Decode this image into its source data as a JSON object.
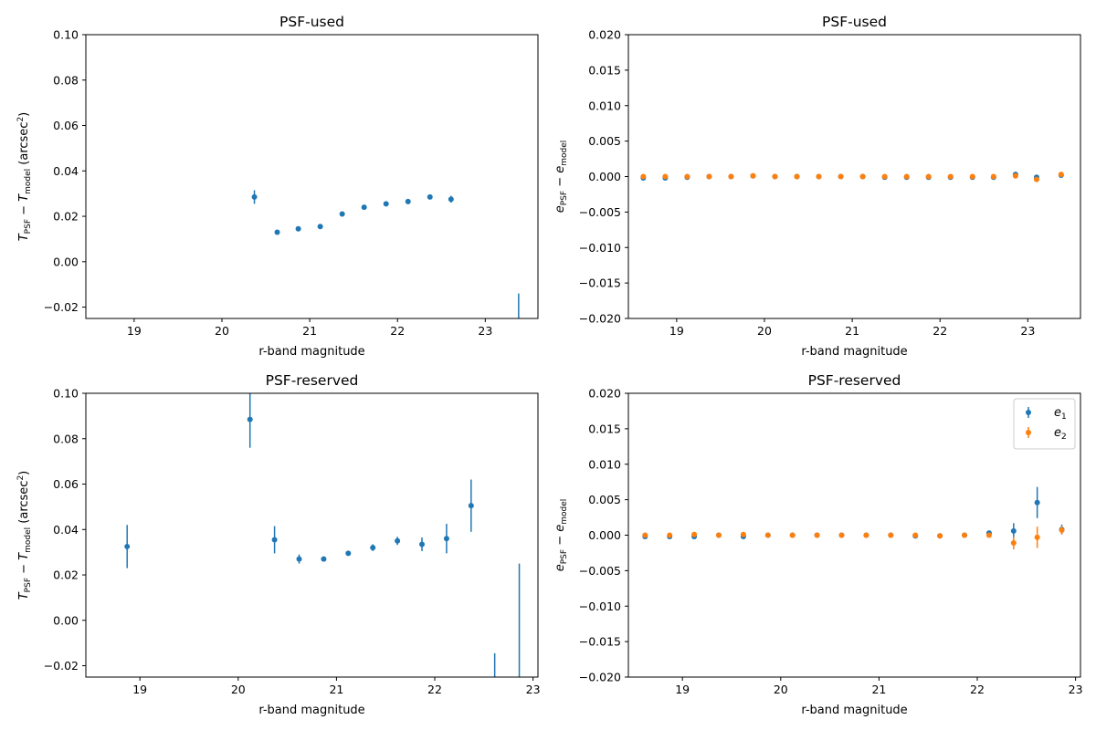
{
  "colors": {
    "e1": "#1f77b4",
    "e2": "#ff7f0e",
    "axis": "#000000"
  },
  "chart_data": [
    {
      "type": "scatter",
      "title": "PSF-used",
      "xlabel": "r-band magnitude",
      "ylabel_main": "T",
      "ylabel_sub1": "PSF",
      "ylabel_mid": " − T",
      "ylabel_sub2": "model",
      "ylabel_unit": " (arcsec",
      "ylabel_sup": "2",
      "ylabel_end": ")",
      "xlim": [
        18.45,
        23.6
      ],
      "ylim": [
        -0.025,
        0.1
      ],
      "xticks": [
        19,
        20,
        21,
        22,
        23
      ],
      "xtick_labels": [
        "19",
        "20",
        "21",
        "22",
        "23"
      ],
      "yticks": [
        -0.02,
        0.0,
        0.02,
        0.04,
        0.06,
        0.08,
        0.1
      ],
      "ytick_labels": [
        "−0.02",
        "0.00",
        "0.02",
        "0.04",
        "0.06",
        "0.08",
        "0.10"
      ],
      "series": [
        {
          "name": "T",
          "color_key": "e1",
          "x": [
            20.37,
            20.63,
            20.87,
            21.12,
            21.37,
            21.62,
            21.87,
            22.12,
            22.37,
            22.61,
            23.38
          ],
          "y": [
            0.0285,
            0.013,
            0.0145,
            0.0155,
            0.021,
            0.024,
            0.0255,
            0.0265,
            0.0285,
            0.0275,
            null
          ],
          "err": [
            0.003,
            0.0008,
            0.001,
            0.001,
            0.0006,
            0.0006,
            0.0007,
            0.0007,
            0.001,
            0.0015,
            null
          ],
          "err_low": [
            null,
            null,
            null,
            null,
            null,
            null,
            null,
            null,
            null,
            null,
            -0.03
          ],
          "err_high": [
            null,
            null,
            null,
            null,
            null,
            null,
            null,
            null,
            null,
            null,
            -0.014
          ]
        }
      ]
    },
    {
      "type": "scatter",
      "title": "PSF-used",
      "xlabel": "r-band magnitude",
      "ylabel_main": "e",
      "ylabel_sub1": "PSF",
      "ylabel_mid": " − e",
      "ylabel_sub2": "model",
      "ylabel_unit": "",
      "ylabel_sup": "",
      "ylabel_end": "",
      "xlim": [
        18.45,
        23.6
      ],
      "ylim": [
        -0.02,
        0.02
      ],
      "xticks": [
        19,
        20,
        21,
        22,
        23
      ],
      "xtick_labels": [
        "19",
        "20",
        "21",
        "22",
        "23"
      ],
      "yticks": [
        -0.02,
        -0.015,
        -0.01,
        -0.005,
        0.0,
        0.005,
        0.01,
        0.015,
        0.02
      ],
      "ytick_labels": [
        "−0.020",
        "−0.015",
        "−0.010",
        "−0.005",
        "0.000",
        "0.005",
        "0.010",
        "0.015",
        "0.020"
      ],
      "series": [
        {
          "name": "e1",
          "color_key": "e1",
          "x": [
            18.62,
            18.87,
            19.12,
            19.37,
            19.62,
            19.87,
            20.12,
            20.37,
            20.62,
            20.87,
            21.12,
            21.37,
            21.62,
            21.87,
            22.12,
            22.37,
            22.61,
            22.86,
            23.1,
            23.38
          ],
          "y": [
            -0.0002,
            -0.0002,
            -0.0001,
            0.0,
            0.0,
            0.0001,
            0.0,
            0.0,
            0.0,
            0.0,
            0.0,
            -0.0001,
            -0.0001,
            -0.0001,
            -0.0001,
            -0.0001,
            -0.0001,
            0.0003,
            -0.0001,
            0.0002
          ],
          "err": [
            0.0001,
            0.0001,
            0.0001,
            0.0001,
            0.0001,
            0.0001,
            0.0001,
            0.0001,
            0.0001,
            0.0001,
            0.0001,
            0.0001,
            0.0001,
            0.0001,
            0.0001,
            0.0001,
            0.0001,
            0.0002,
            0.0002,
            0.0003
          ]
        },
        {
          "name": "e2",
          "color_key": "e2",
          "x": [
            18.62,
            18.87,
            19.12,
            19.37,
            19.62,
            19.87,
            20.12,
            20.37,
            20.62,
            20.87,
            21.12,
            21.37,
            21.62,
            21.87,
            22.12,
            22.37,
            22.61,
            22.86,
            23.1,
            23.38
          ],
          "y": [
            0.0,
            0.0,
            0.0,
            0.0,
            0.0,
            0.0001,
            0.0,
            0.0,
            0.0,
            0.0,
            0.0,
            0.0,
            0.0,
            0.0,
            0.0,
            0.0,
            0.0,
            0.0001,
            -0.0004,
            0.0003
          ],
          "err": [
            0.0001,
            0.0001,
            0.0001,
            0.0001,
            0.0001,
            0.0001,
            0.0001,
            0.0001,
            0.0001,
            0.0001,
            0.0001,
            0.0001,
            0.0001,
            0.0001,
            0.0001,
            0.0001,
            0.0001,
            0.0002,
            0.0002,
            0.0003
          ]
        }
      ]
    },
    {
      "type": "scatter",
      "title": "PSF-reserved",
      "xlabel": "r-band magnitude",
      "ylabel_main": "T",
      "ylabel_sub1": "PSF",
      "ylabel_mid": " − T",
      "ylabel_sub2": "model",
      "ylabel_unit": " (arcsec",
      "ylabel_sup": "2",
      "ylabel_end": ")",
      "xlim": [
        18.45,
        23.05
      ],
      "ylim": [
        -0.025,
        0.1
      ],
      "xticks": [
        19,
        20,
        21,
        22,
        23
      ],
      "xtick_labels": [
        "19",
        "20",
        "21",
        "22",
        "23"
      ],
      "yticks": [
        -0.02,
        0.0,
        0.02,
        0.04,
        0.06,
        0.08,
        0.1
      ],
      "ytick_labels": [
        "−0.02",
        "0.00",
        "0.02",
        "0.04",
        "0.06",
        "0.08",
        "0.10"
      ],
      "series": [
        {
          "name": "T",
          "color_key": "e1",
          "x": [
            18.87,
            20.12,
            20.37,
            20.62,
            20.87,
            21.12,
            21.37,
            21.62,
            21.87,
            22.12,
            22.37,
            22.61,
            22.86
          ],
          "y": [
            0.0325,
            0.0885,
            0.0355,
            0.027,
            0.027,
            0.0295,
            0.032,
            0.035,
            0.0335,
            0.036,
            0.0505,
            null,
            null
          ],
          "err": [
            0.0095,
            0.0125,
            0.006,
            0.002,
            0.0008,
            0.0008,
            0.0015,
            0.0018,
            0.003,
            0.0065,
            0.0115,
            null,
            null
          ],
          "err_low": [
            null,
            null,
            null,
            null,
            null,
            null,
            null,
            null,
            null,
            null,
            null,
            -0.03,
            -0.03
          ],
          "err_high": [
            null,
            null,
            null,
            null,
            null,
            null,
            null,
            null,
            null,
            null,
            null,
            -0.0145,
            0.025
          ]
        }
      ]
    },
    {
      "type": "scatter",
      "title": "PSF-reserved",
      "xlabel": "r-band magnitude",
      "ylabel_main": "e",
      "ylabel_sub1": "PSF",
      "ylabel_mid": " − e",
      "ylabel_sub2": "model",
      "ylabel_unit": "",
      "ylabel_sup": "",
      "ylabel_end": "",
      "xlim": [
        18.45,
        23.05
      ],
      "ylim": [
        -0.02,
        0.02
      ],
      "xticks": [
        19,
        20,
        21,
        22,
        23
      ],
      "xtick_labels": [
        "19",
        "20",
        "21",
        "22",
        "23"
      ],
      "yticks": [
        -0.02,
        -0.015,
        -0.01,
        -0.005,
        0.0,
        0.005,
        0.01,
        0.015,
        0.02
      ],
      "ytick_labels": [
        "−0.020",
        "−0.015",
        "−0.010",
        "−0.005",
        "0.000",
        "0.005",
        "0.010",
        "0.015",
        "0.020"
      ],
      "legend": {
        "position": "top-right",
        "entries": [
          {
            "main": "e",
            "sub": "1",
            "color_key": "e1"
          },
          {
            "main": "e",
            "sub": "2",
            "color_key": "e2"
          }
        ]
      },
      "series": [
        {
          "name": "e1",
          "color_key": "e1",
          "x": [
            18.62,
            18.87,
            19.12,
            19.37,
            19.62,
            19.87,
            20.12,
            20.37,
            20.62,
            20.87,
            21.12,
            21.37,
            21.62,
            21.87,
            22.12,
            22.37,
            22.61,
            22.86
          ],
          "y": [
            -0.0002,
            -0.0002,
            -0.0002,
            0.0,
            -0.0002,
            0.0,
            0.0,
            0.0,
            0.0,
            0.0,
            0.0,
            -0.0001,
            -0.0001,
            0.0,
            0.0003,
            0.0006,
            0.0046,
            0.0008
          ],
          "err": [
            0.0001,
            0.0001,
            0.0001,
            0.0001,
            0.0001,
            0.0001,
            0.0001,
            0.0001,
            0.0001,
            0.0001,
            0.0001,
            0.0001,
            0.0001,
            0.0001,
            0.0002,
            0.0011,
            0.0022,
            0.0007
          ]
        },
        {
          "name": "e2",
          "color_key": "e2",
          "x": [
            18.62,
            18.87,
            19.12,
            19.37,
            19.62,
            19.87,
            20.12,
            20.37,
            20.62,
            20.87,
            21.12,
            21.37,
            21.62,
            21.87,
            22.12,
            22.37,
            22.61,
            22.86
          ],
          "y": [
            0.0,
            0.0,
            0.0001,
            0.0,
            0.0001,
            0.0,
            0.0,
            0.0,
            0.0,
            0.0,
            0.0,
            0.0,
            -0.0001,
            0.0,
            0.0,
            -0.0011,
            -0.0003,
            0.0007
          ],
          "err": [
            0.0001,
            0.0001,
            0.0001,
            0.0001,
            0.0001,
            0.0001,
            0.0001,
            0.0001,
            0.0001,
            0.0001,
            0.0001,
            0.0001,
            0.0001,
            0.0001,
            0.0002,
            0.0009,
            0.0015,
            0.0006
          ]
        }
      ]
    }
  ]
}
